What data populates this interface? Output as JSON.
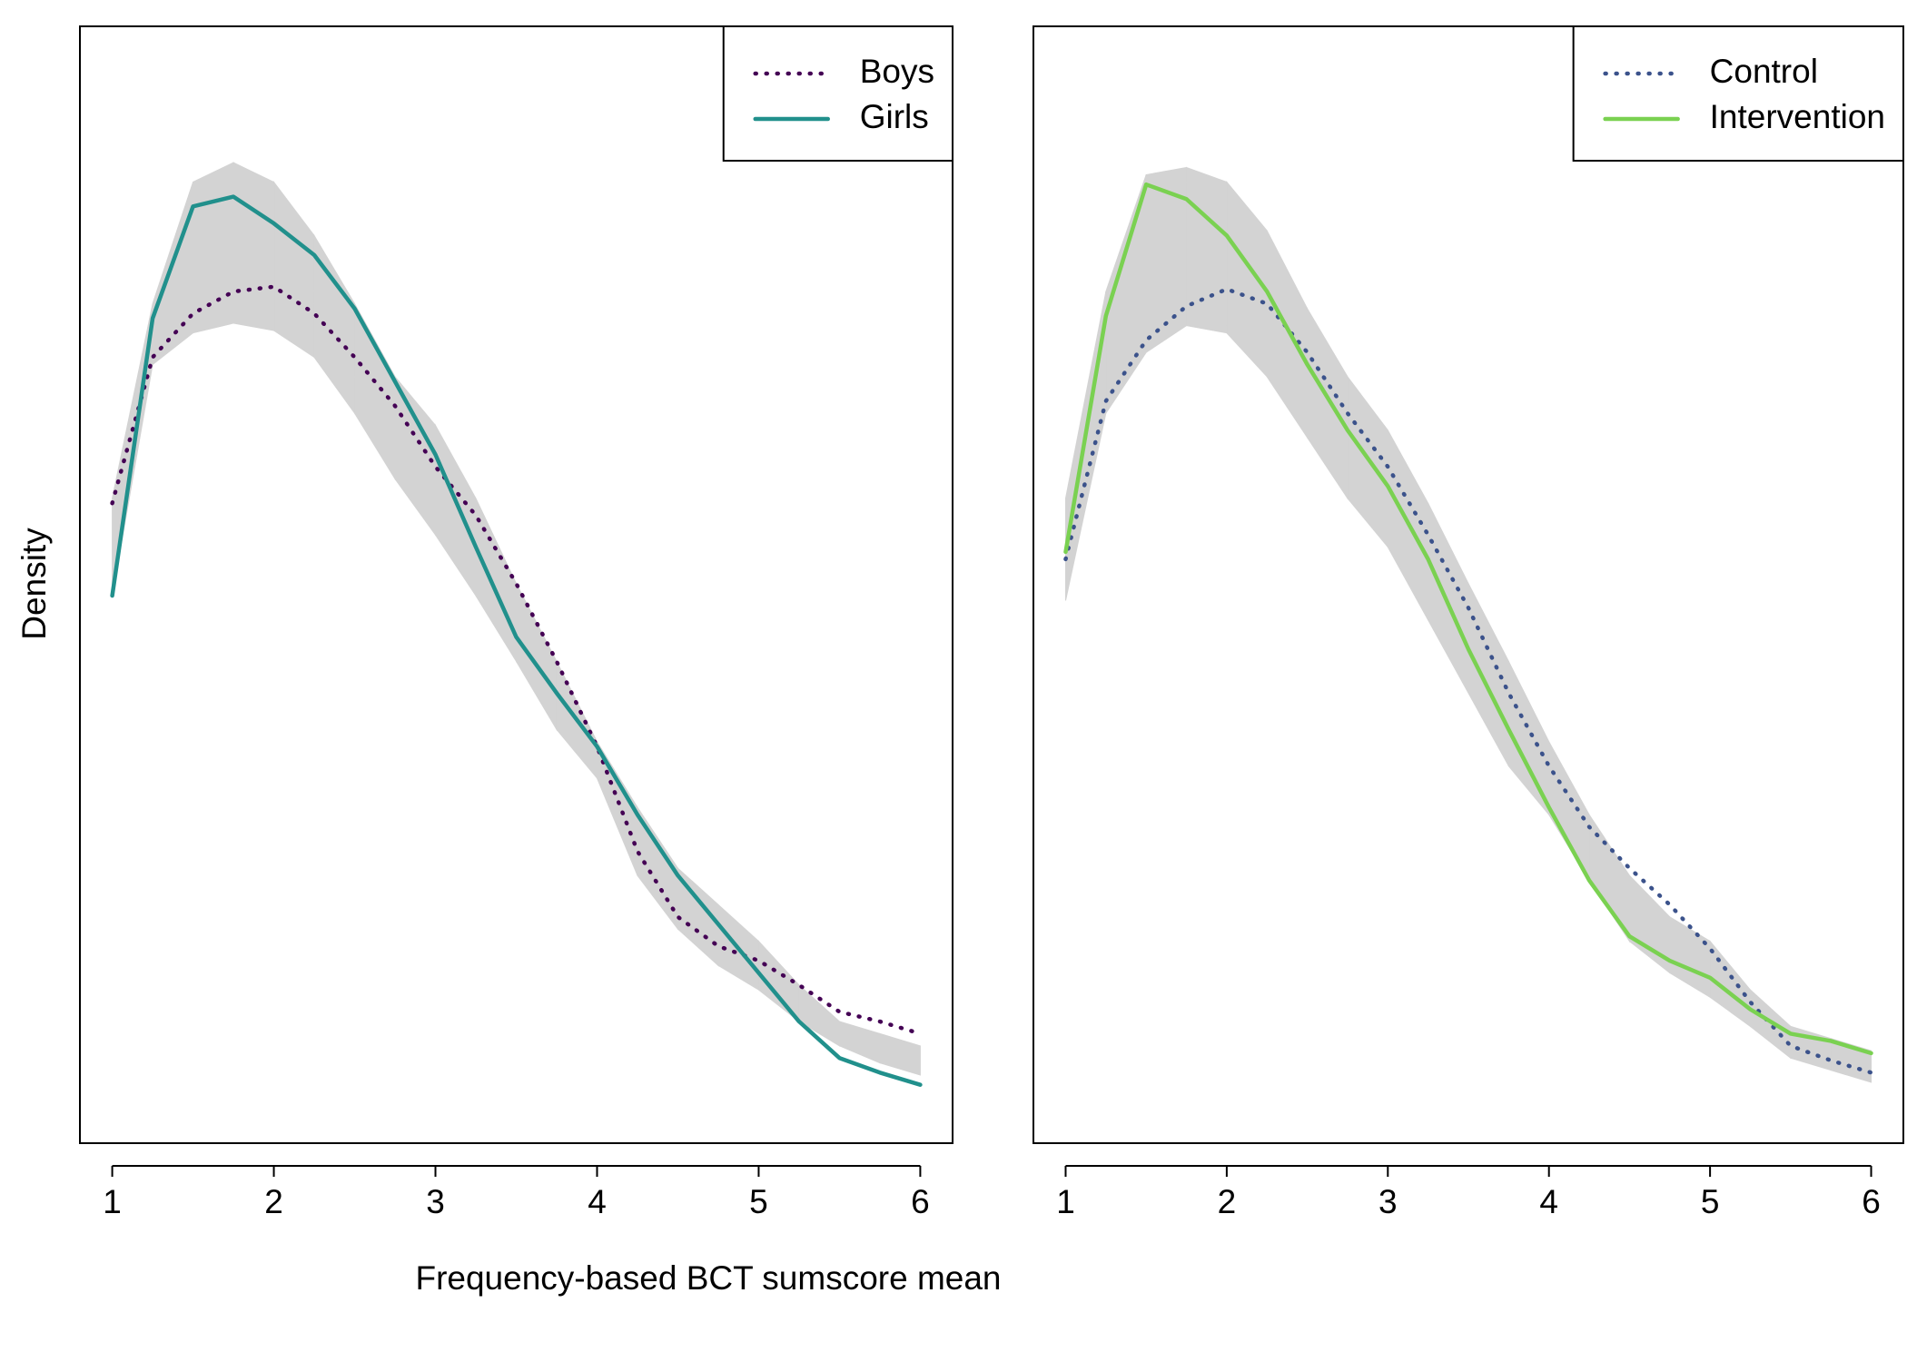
{
  "chart_data": [
    {
      "type": "line",
      "xlabel": "Frequency-based BCT sumscore mean",
      "ylabel": "Density",
      "x": [
        1,
        1.25,
        1.5,
        1.75,
        2,
        2.25,
        2.5,
        2.75,
        3,
        3.25,
        3.5,
        3.75,
        4,
        4.25,
        4.5,
        4.75,
        5,
        5.25,
        5.5,
        5.75,
        6
      ],
      "xlim": [
        0.8,
        6.2
      ],
      "xticks": [
        1,
        2,
        3,
        4,
        5,
        6
      ],
      "ylim": [
        0,
        0.459
      ],
      "legend": "topright",
      "band": {
        "color": "#d3d3d3",
        "upper": [
          0.265,
          0.345,
          0.395,
          0.403,
          0.395,
          0.373,
          0.345,
          0.315,
          0.295,
          0.265,
          0.23,
          0.198,
          0.165,
          0.138,
          0.113,
          0.098,
          0.083,
          0.065,
          0.05,
          0.045,
          0.04
        ],
        "lower": [
          0.225,
          0.32,
          0.333,
          0.337,
          0.334,
          0.323,
          0.3,
          0.273,
          0.25,
          0.225,
          0.198,
          0.17,
          0.15,
          0.11,
          0.088,
          0.073,
          0.063,
          0.05,
          0.04,
          0.033,
          0.028
        ]
      },
      "series": [
        {
          "name": "Boys",
          "color": "#440154",
          "dash": "dotted",
          "values": [
            0.263,
            0.323,
            0.341,
            0.35,
            0.352,
            0.341,
            0.323,
            0.303,
            0.278,
            0.258,
            0.23,
            0.198,
            0.163,
            0.12,
            0.093,
            0.081,
            0.075,
            0.065,
            0.054,
            0.05,
            0.045
          ]
        },
        {
          "name": "Girls",
          "color": "#21908c",
          "dash": "solid",
          "values": [
            0.225,
            0.339,
            0.385,
            0.389,
            0.378,
            0.365,
            0.343,
            0.313,
            0.283,
            0.245,
            0.208,
            0.185,
            0.163,
            0.135,
            0.11,
            0.09,
            0.07,
            0.05,
            0.035,
            0.029,
            0.024
          ]
        }
      ]
    },
    {
      "type": "line",
      "x": [
        1,
        1.25,
        1.5,
        1.75,
        2,
        2.25,
        2.5,
        2.75,
        3,
        3.25,
        3.5,
        3.75,
        4,
        4.25,
        4.5,
        4.75,
        5,
        5.25,
        5.5,
        5.75,
        6
      ],
      "xlim": [
        0.8,
        6.2
      ],
      "xticks": [
        1,
        2,
        3,
        4,
        5,
        6
      ],
      "ylim": [
        0,
        0.459
      ],
      "legend": "topright",
      "band": {
        "color": "#d3d3d3",
        "upper": [
          0.265,
          0.35,
          0.398,
          0.401,
          0.395,
          0.375,
          0.343,
          0.315,
          0.293,
          0.263,
          0.23,
          0.198,
          0.165,
          0.135,
          0.11,
          0.093,
          0.083,
          0.063,
          0.048,
          0.043,
          0.038
        ],
        "lower": [
          0.223,
          0.3,
          0.325,
          0.336,
          0.333,
          0.315,
          0.29,
          0.265,
          0.245,
          0.215,
          0.185,
          0.155,
          0.135,
          0.108,
          0.083,
          0.07,
          0.06,
          0.048,
          0.035,
          0.03,
          0.025
        ]
      },
      "series": [
        {
          "name": "Control",
          "color": "#3b528b",
          "dash": "dotted",
          "values": [
            0.24,
            0.305,
            0.33,
            0.344,
            0.351,
            0.345,
            0.325,
            0.3,
            0.278,
            0.25,
            0.22,
            0.185,
            0.155,
            0.13,
            0.113,
            0.098,
            0.08,
            0.058,
            0.04,
            0.034,
            0.029
          ]
        },
        {
          "name": "Intervention",
          "color": "#7ad151",
          "dash": "solid",
          "values": [
            0.243,
            0.34,
            0.394,
            0.388,
            0.373,
            0.35,
            0.32,
            0.293,
            0.27,
            0.24,
            0.203,
            0.17,
            0.138,
            0.108,
            0.085,
            0.075,
            0.068,
            0.055,
            0.045,
            0.042,
            0.037
          ]
        }
      ]
    }
  ]
}
